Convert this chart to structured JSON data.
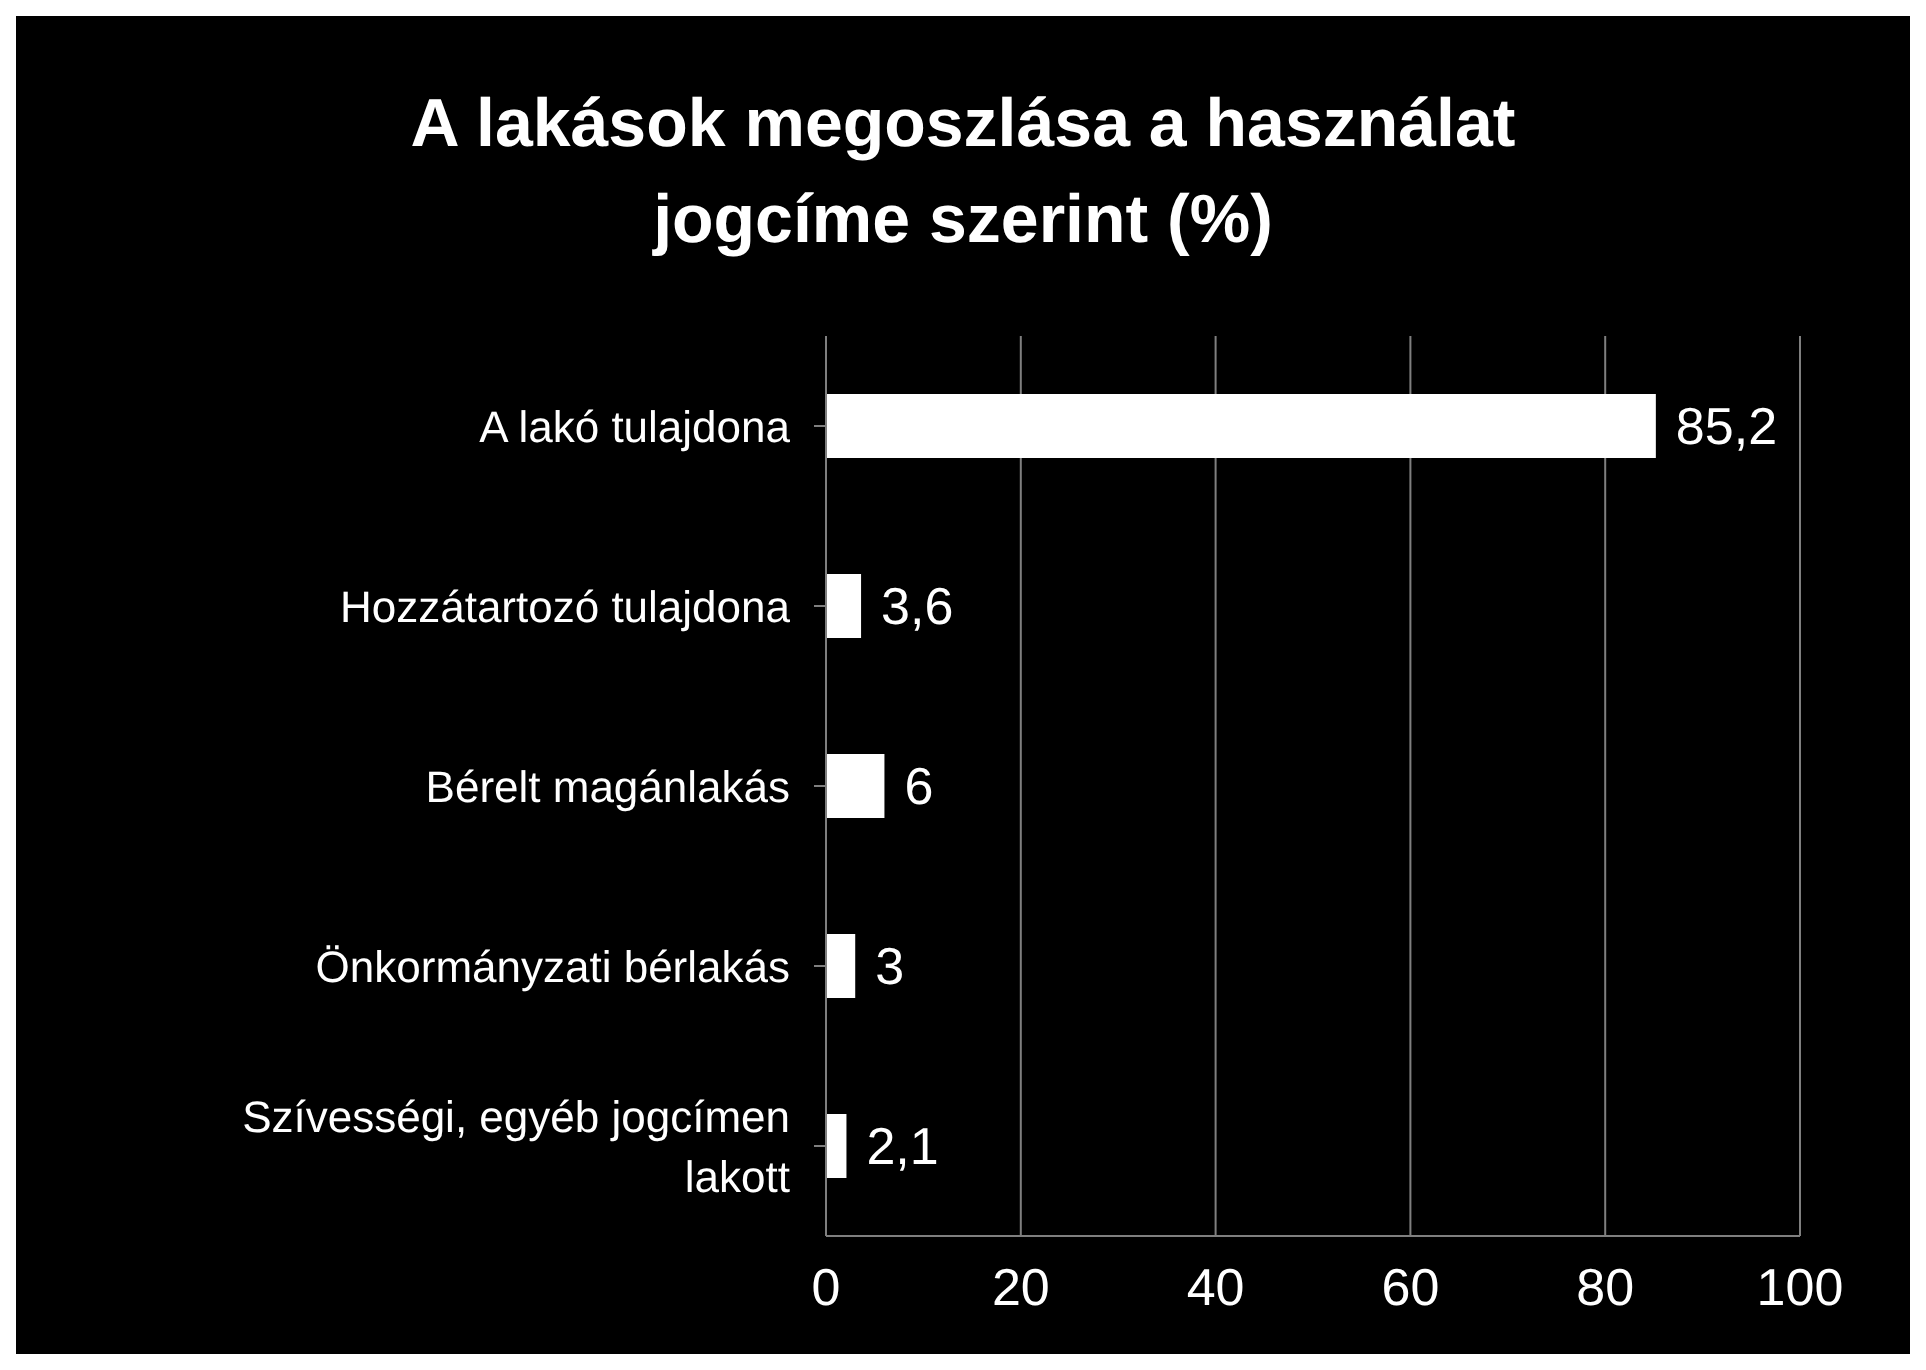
{
  "chart_data": {
    "type": "bar",
    "orientation": "horizontal",
    "title": "A lakások megoszlása a használat jogcíme szerint (%)",
    "categories": [
      "A lakó tulajdona",
      "Hozzátartozó tulajdona",
      "Bérelt magánlakás",
      "Önkormányzati bérlakás",
      "Szívességi, egyéb jogcímen lakott"
    ],
    "values": [
      85.2,
      3.6,
      6,
      3,
      2.1
    ],
    "value_labels": [
      "85,2",
      "3,6",
      "6",
      "3",
      "2,1"
    ],
    "color": "#ffffff",
    "xlim": [
      0,
      100
    ],
    "xticks": [
      0,
      20,
      40,
      60,
      80,
      100
    ],
    "grid": "x"
  }
}
